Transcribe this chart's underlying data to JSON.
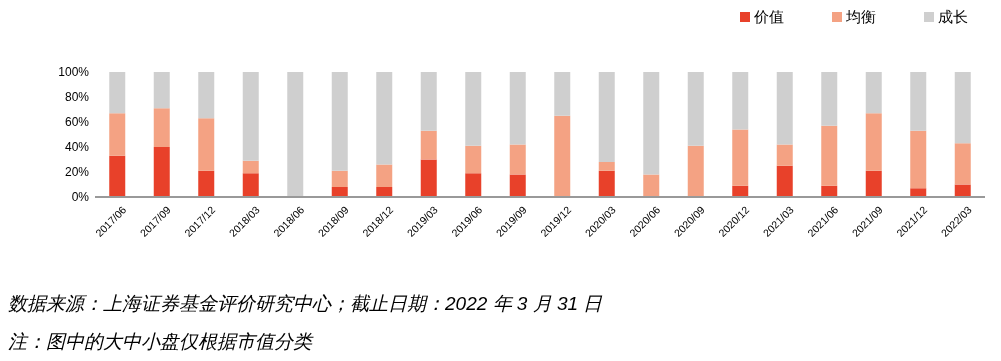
{
  "chart_data": {
    "type": "bar",
    "stacked": true,
    "legend": "top right",
    "grid": false,
    "categories": [
      "2017/06",
      "2017/09",
      "2017/12",
      "2018/03",
      "2018/06",
      "2018/09",
      "2018/12",
      "2019/03",
      "2019/06",
      "2019/09",
      "2019/12",
      "2020/03",
      "2020/06",
      "2020/09",
      "2020/12",
      "2021/03",
      "2021/06",
      "2021/09",
      "2021/12",
      "2022/03"
    ],
    "ylim": [
      0,
      100
    ],
    "yticks": [
      {
        "value": 0,
        "label": "0%"
      },
      {
        "value": 20,
        "label": "20%"
      },
      {
        "value": 40,
        "label": "40%"
      },
      {
        "value": 60,
        "label": "60%"
      },
      {
        "value": 80,
        "label": "80%"
      },
      {
        "value": 100,
        "label": "100%"
      }
    ],
    "series": [
      {
        "name": "价值",
        "color": "#e8412a",
        "values": [
          33,
          40,
          21,
          19,
          0,
          8,
          8,
          30,
          19,
          18,
          0,
          21,
          0,
          0,
          9,
          25,
          9,
          21,
          7,
          10
        ]
      },
      {
        "name": "均衡",
        "color": "#f4a283",
        "values": [
          34,
          31,
          42,
          10,
          0,
          13,
          18,
          23,
          22,
          24,
          65,
          7,
          18,
          41,
          45,
          17,
          48,
          46,
          46,
          33
        ]
      },
      {
        "name": "成长",
        "color": "#cfcfcf",
        "values": [
          33,
          29,
          37,
          71,
          100,
          79,
          74,
          47,
          59,
          58,
          35,
          72,
          82,
          59,
          46,
          58,
          43,
          33,
          47,
          57
        ]
      }
    ],
    "annotations": [
      "数据来源：上海证券基金评价研究中心；截止日期：2022 年 3 月 31 日",
      "注：图中的大中小盘仅根据市值分类"
    ]
  }
}
